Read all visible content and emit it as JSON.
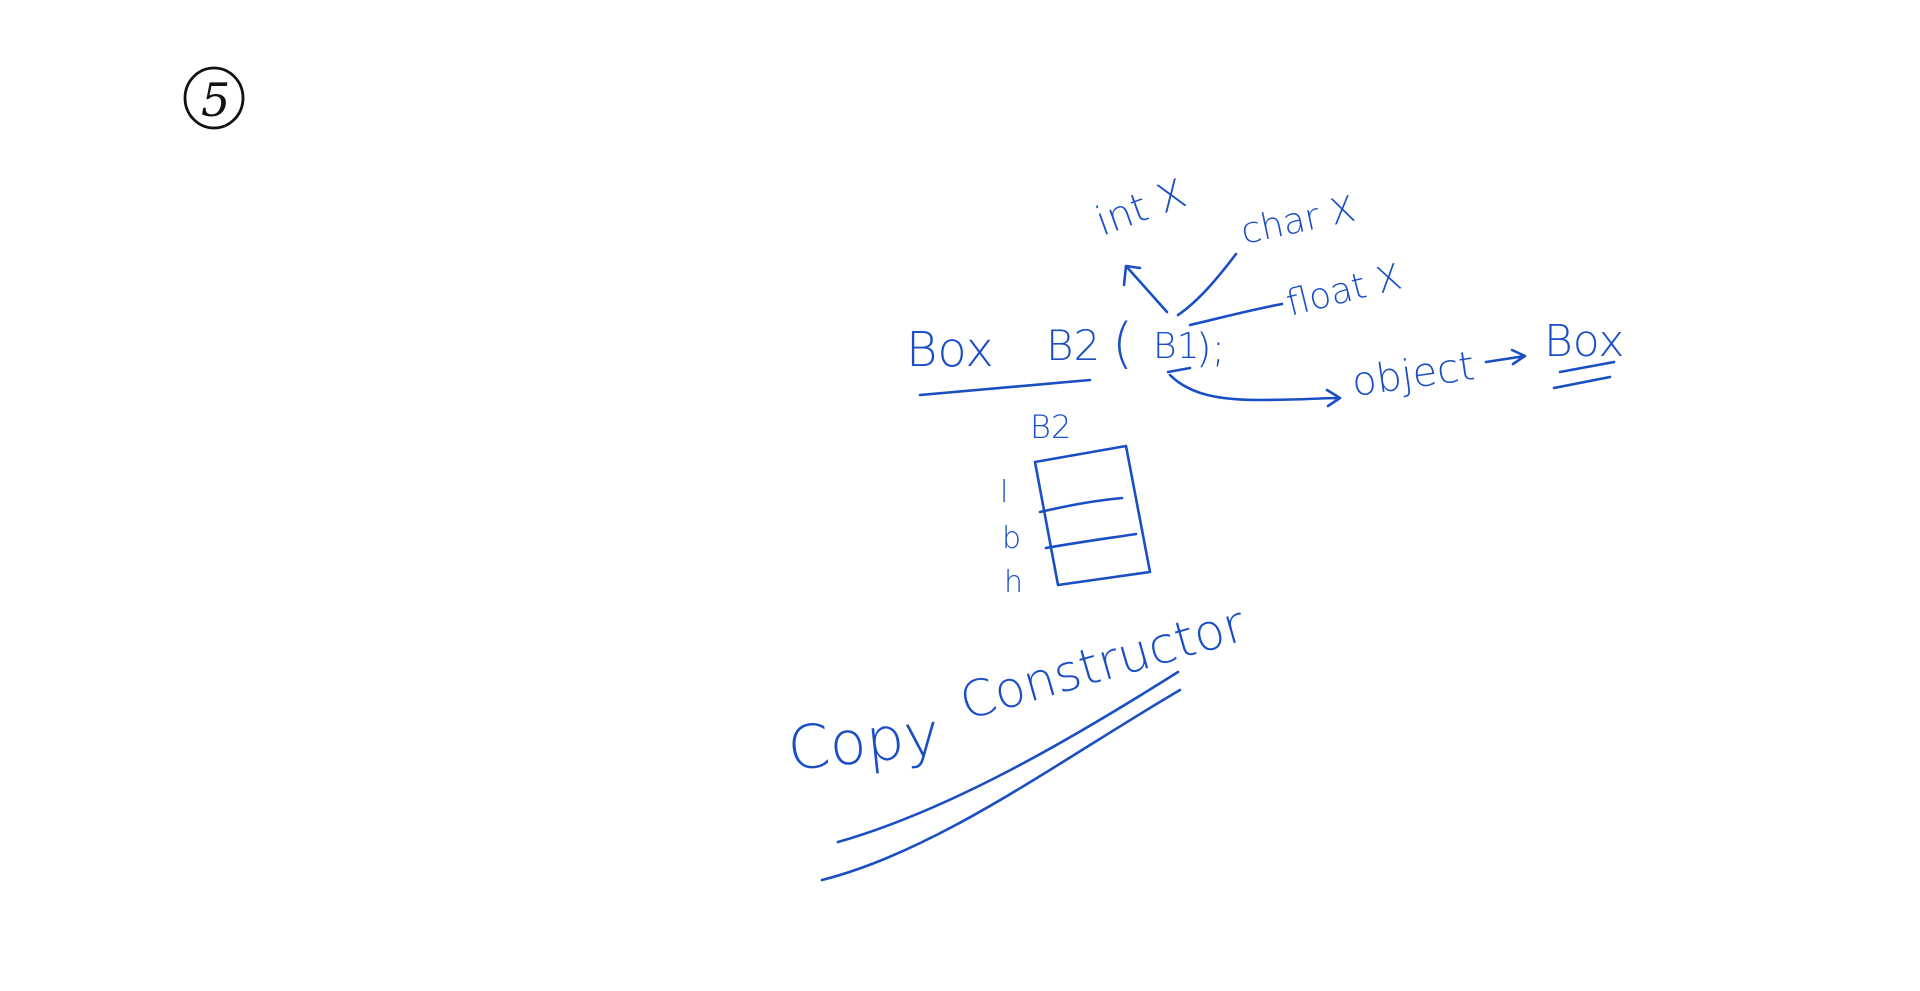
{
  "colors": {
    "ink_blue": "#1a4fc4",
    "ink_black": "#111111",
    "background": "#ffffff"
  },
  "page_marker": {
    "label": "5"
  },
  "code_line": {
    "class_name": "Box",
    "object_name": "B2",
    "open_paren": "(",
    "argument": "B1",
    "close_paren": ");"
  },
  "branches": {
    "int_label": "int X",
    "char_label": "char X",
    "float_label": "float X"
  },
  "object_note": {
    "object_label": "object",
    "target_label": "Box"
  },
  "memory_block": {
    "title": "B2",
    "fields": [
      "l",
      "b",
      "h"
    ]
  },
  "heading": {
    "word1": "Copy",
    "word2": "Constructor"
  }
}
